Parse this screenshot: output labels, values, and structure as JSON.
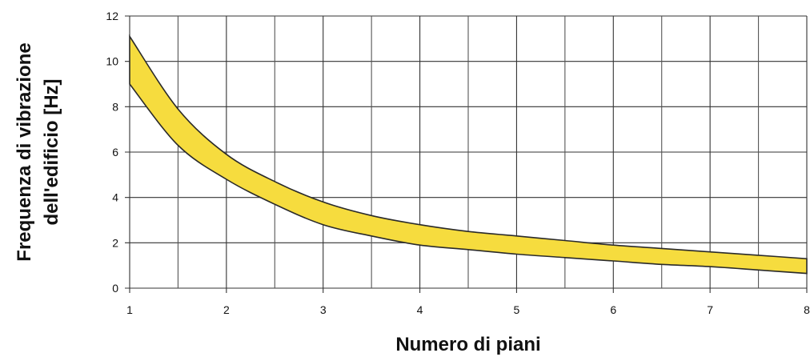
{
  "chart_data": {
    "type": "area",
    "xlabel": "Numero di piani",
    "ylabel_lines": [
      "Frequenza di vibrazione",
      "dell'edificio [Hz]"
    ],
    "xlim": [
      1,
      8
    ],
    "ylim": [
      0,
      12
    ],
    "x_ticks": [
      1,
      2,
      3,
      4,
      5,
      6,
      7,
      8
    ],
    "y_ticks": [
      0,
      2,
      4,
      6,
      8,
      10,
      12
    ],
    "x_tick_labels": [
      "1",
      "2",
      "3",
      "4",
      "5",
      "6",
      "7",
      "8"
    ],
    "y_tick_labels": [
      "0",
      "2",
      "4",
      "6",
      "8",
      "10",
      "12"
    ],
    "x_minor_step": 0.5,
    "grid": true,
    "band_color": "#f6dc3e",
    "series": [
      {
        "role": "upper",
        "x": [
          1,
          1.5,
          2,
          2.5,
          3,
          3.5,
          4,
          4.5,
          5,
          5.5,
          6,
          6.5,
          7,
          7.5,
          8
        ],
        "values": [
          11.1,
          7.9,
          5.9,
          4.7,
          3.8,
          3.2,
          2.8,
          2.5,
          2.3,
          2.1,
          1.9,
          1.75,
          1.6,
          1.45,
          1.3
        ]
      },
      {
        "role": "lower",
        "x": [
          1,
          1.5,
          2,
          2.5,
          3,
          3.5,
          4,
          4.5,
          5,
          5.5,
          6,
          6.5,
          7,
          7.5,
          8
        ],
        "values": [
          9.0,
          6.3,
          4.8,
          3.7,
          2.8,
          2.3,
          1.9,
          1.7,
          1.5,
          1.35,
          1.2,
          1.05,
          0.95,
          0.8,
          0.65
        ]
      }
    ]
  }
}
